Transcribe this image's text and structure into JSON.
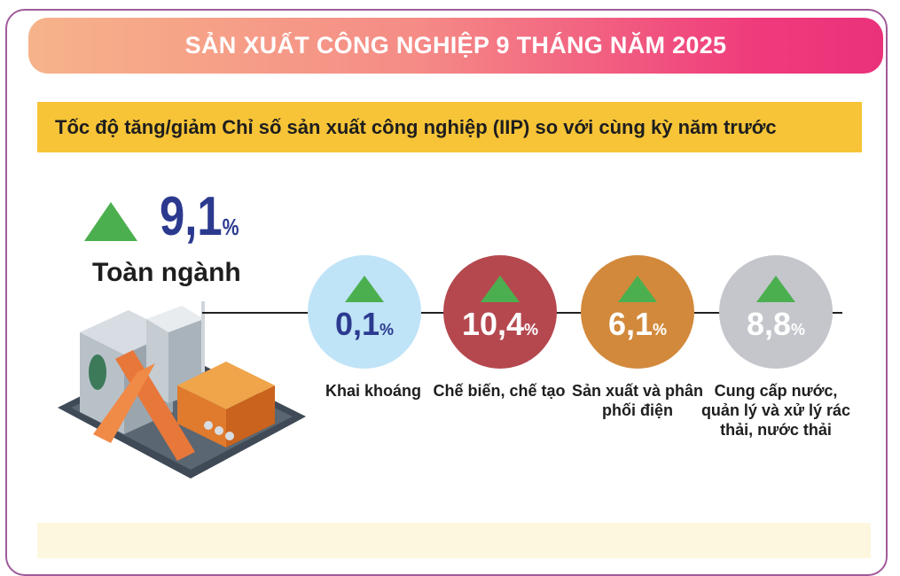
{
  "title": "SẢN XUẤT CÔNG NGHIỆP 9 THÁNG NĂM 2025",
  "subtitle": "Tốc độ tăng/giảm Chỉ số sản xuất công nghiệp (IIP) so với cùng kỳ năm trước",
  "total": {
    "value": "9,1",
    "unit": "%",
    "label": "Toàn ngành",
    "direction": "up"
  },
  "colors": {
    "up_arrow": "#4caf4f",
    "total_value": "#2b3a8f",
    "banner_start": "#f6b38a",
    "banner_end": "#e9327a",
    "subtitle_bg": "#f7c437"
  },
  "sectors": [
    {
      "value": "0,1",
      "unit": "%",
      "label": "Khai khoáng",
      "color": "#bfe3f7",
      "text_color": "#2b3a8f",
      "direction": "up"
    },
    {
      "value": "10,4",
      "unit": "%",
      "label": "Chế biến, chế tạo",
      "color": "#b5484f",
      "text_color": "#ffffff",
      "direction": "up"
    },
    {
      "value": "6,1",
      "unit": "%",
      "label": "Sản xuất và phân phối điện",
      "color": "#d2893b",
      "text_color": "#ffffff",
      "direction": "up"
    },
    {
      "value": "8,8",
      "unit": "%",
      "label": "Cung cấp nước, quản lý và xử lý rác thải, nước thải",
      "color": "#c4c6cc",
      "text_color": "#ffffff",
      "direction": "up"
    }
  ],
  "chart_data": {
    "type": "bar",
    "title": "SẢN XUẤT CÔNG NGHIỆP 9 THÁNG NĂM 2025",
    "subtitle": "Tốc độ tăng/giảm Chỉ số sản xuất công nghiệp (IIP) so với cùng kỳ năm trước",
    "categories": [
      "Toàn ngành",
      "Khai khoáng",
      "Chế biến, chế tạo",
      "Sản xuất và phân phối điện",
      "Cung cấp nước, quản lý và xử lý rác thải, nước thải"
    ],
    "values": [
      9.1,
      0.1,
      10.4,
      6.1,
      8.8
    ],
    "unit": "%"
  }
}
